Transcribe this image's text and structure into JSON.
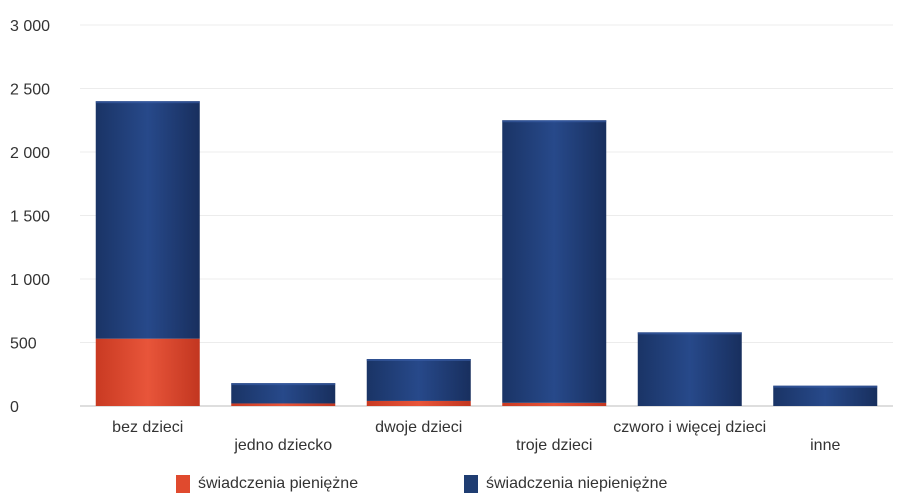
{
  "chart_data": {
    "type": "bar",
    "stacked": true,
    "categories": [
      "bez dzieci",
      "jedno dziecko",
      "dwoje dzieci",
      "troje dzieci",
      "czworo i więcej dzieci",
      "inne"
    ],
    "series": [
      {
        "name": "świadczenia pieniężne",
        "color": "#e04a2e",
        "values": [
          530,
          20,
          40,
          25,
          0,
          0
        ]
      },
      {
        "name": "świadczenia niepieniężne",
        "color": "#1f3d72",
        "values": [
          1870,
          160,
          330,
          2225,
          580,
          160
        ]
      }
    ],
    "yticks": [
      "3 000",
      "2 500",
      "2 000",
      "1 500",
      "1 000",
      "500",
      "0"
    ],
    "ylim": [
      0,
      3000
    ],
    "grid": true,
    "legend_position": "bottom"
  }
}
